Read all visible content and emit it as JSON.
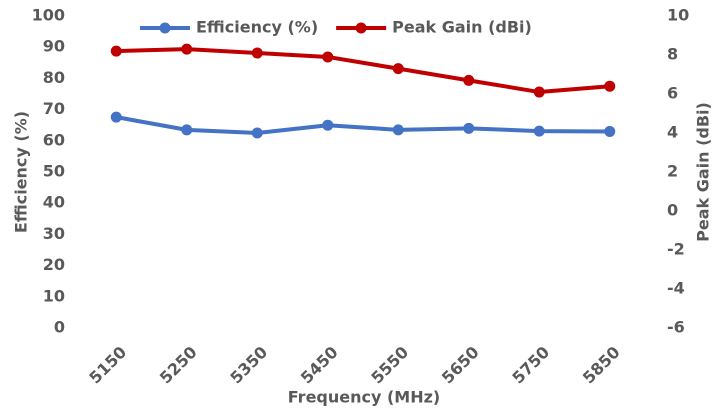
{
  "chart_data": {
    "type": "line",
    "categories": [
      "5150",
      "5250",
      "5350",
      "5450",
      "5550",
      "5650",
      "5750",
      "5850"
    ],
    "series": [
      {
        "name": "Efficiency (%)",
        "color": "#4472c4",
        "values": [
          67.6,
          63.5,
          62.5,
          65,
          63.5,
          64,
          63.1,
          63
        ]
      },
      {
        "name": "Peak Gain (dBi)",
        "color": "#c00000",
        "axis": "y2",
        "values": [
          8.2,
          8.3,
          8.1,
          7.9,
          7.3,
          6.7,
          6.1,
          6.4
        ]
      }
    ],
    "x_label": "Frequency (MHz)",
    "y_label": "Efficiency (%)",
    "y2_label": "Peak Gain (dBi)",
    "ylim": [
      0,
      100
    ],
    "yticks": [
      0,
      10,
      20,
      30,
      40,
      50,
      60,
      70,
      80,
      90,
      100
    ],
    "y2lim": [
      -6,
      10
    ],
    "y2ticks": [
      -6,
      -4,
      -2,
      0,
      2,
      4,
      6,
      8,
      10
    ],
    "grid": false
  }
}
